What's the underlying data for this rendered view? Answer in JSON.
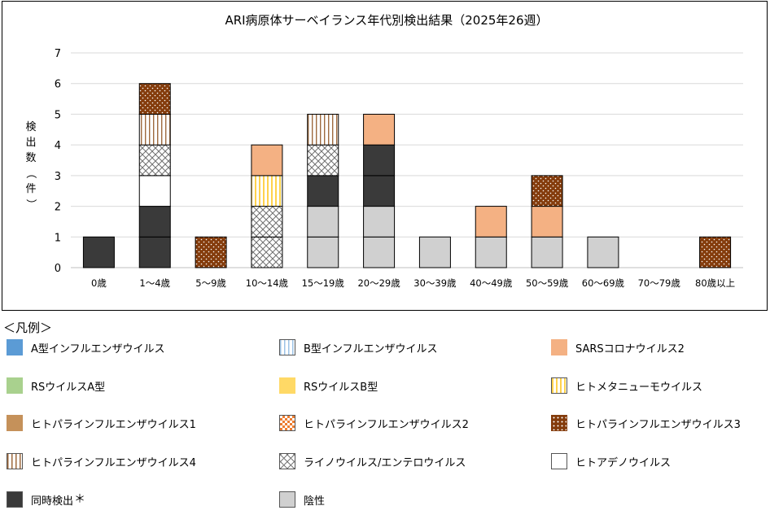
{
  "chart_data": {
    "type": "bar",
    "stacked": true,
    "title": "ARI病原体サーベイランス年代別検出結果（2025年26週）",
    "ylabel": "検出数（件）",
    "xlabel": "",
    "ylim": [
      0,
      7
    ],
    "yticks": [
      0,
      1,
      2,
      3,
      4,
      5,
      6,
      7
    ],
    "grid": true,
    "categories": [
      "0歳",
      "1～4歳",
      "5～9歳",
      "10～14歳",
      "15～19歳",
      "20～29歳",
      "30～39歳",
      "40～49歳",
      "50～59歳",
      "60～69歳",
      "70～79歳",
      "80歳以上"
    ],
    "series": [
      {
        "name": "陰性",
        "key": "negative",
        "values": [
          0,
          0,
          0,
          0,
          2,
          2,
          1,
          1,
          1,
          1,
          0,
          0
        ]
      },
      {
        "name": "同時検出",
        "key": "coinfection",
        "values": [
          1,
          2,
          0,
          0,
          1,
          2,
          0,
          0,
          0,
          0,
          0,
          0
        ]
      },
      {
        "name": "ヒトアデノウイルス",
        "key": "adeno",
        "values": [
          0,
          1,
          0,
          0,
          0,
          0,
          0,
          0,
          0,
          0,
          0,
          0
        ]
      },
      {
        "name": "ライノウイルス/エンテロウイルス",
        "key": "rhino",
        "values": [
          0,
          1,
          0,
          2,
          1,
          0,
          0,
          0,
          0,
          0,
          0,
          0
        ]
      },
      {
        "name": "ヒトメタニューモウイルス",
        "key": "hmpv",
        "values": [
          0,
          0,
          0,
          1,
          0,
          0,
          0,
          0,
          0,
          0,
          0,
          0
        ]
      },
      {
        "name": "ヒトパラインフルエンザウイルス4",
        "key": "hpiv4",
        "values": [
          0,
          1,
          0,
          0,
          1,
          0,
          0,
          0,
          0,
          0,
          0,
          0
        ]
      },
      {
        "name": "SARSコロナウイルス2",
        "key": "sars",
        "values": [
          0,
          0,
          0,
          1,
          0,
          1,
          0,
          1,
          1,
          0,
          0,
          0
        ]
      },
      {
        "name": "ヒトパラインフルエンザウイルス3",
        "key": "hpiv3",
        "values": [
          0,
          1,
          1,
          0,
          0,
          0,
          0,
          0,
          1,
          0,
          0,
          1
        ]
      }
    ]
  },
  "legend": {
    "heading": "＜凡例＞",
    "items": [
      {
        "label": "A型インフルエンザウイルス",
        "swatch": "solid",
        "color": "#5b9bd5"
      },
      {
        "label": "B型インフルエンザウイルス",
        "swatch": "vstripe-light",
        "color": "#9dc3e6"
      },
      {
        "label": "SARSコロナウイルス2",
        "swatch": "solid",
        "color": "#f4b183"
      },
      {
        "label": "RSウイルスA型",
        "swatch": "solid",
        "color": "#a9d18e"
      },
      {
        "label": "RSウイルスB型",
        "swatch": "solid",
        "color": "#ffd966"
      },
      {
        "label": "ヒトメタニューモウイルス",
        "swatch": "vstripe-yellow",
        "color": "#ffd966"
      },
      {
        "label": "ヒトパラインフルエンザウイルス1",
        "swatch": "solid",
        "color": "#c5915a"
      },
      {
        "label": "ヒトパラインフルエンザウイルス2",
        "swatch": "check-orange",
        "color": "#ed7d31"
      },
      {
        "label": "ヒトパラインフルエンザウイルス3",
        "swatch": "dots-brown",
        "color": "#843c0c"
      },
      {
        "label": "ヒトパラインフルエンザウイルス4",
        "swatch": "vstripe-brown",
        "color": "#a0734a"
      },
      {
        "label": "ライノウイルス/エンテロウイルス",
        "swatch": "crosshatch",
        "color": "#808080"
      },
      {
        "label": "ヒトアデノウイルス",
        "swatch": "solid",
        "color": "#ffffff"
      },
      {
        "label": "同時検出",
        "swatch": "solid",
        "color": "#3a3a3a",
        "mark": "＊"
      },
      {
        "label": "陰性",
        "swatch": "solid",
        "color": "#d0d0d0"
      }
    ]
  },
  "series_fills": {
    "negative": "#d0d0d0",
    "coinfection": "#3a3a3a",
    "adeno": "#ffffff",
    "rhino": "url(#pat-crosshatch)",
    "hmpv": "url(#pat-vstripe-yellow)",
    "hpiv4": "url(#pat-vstripe-brown)",
    "sars": "#f4b183",
    "hpiv3": "url(#pat-dots-brown)"
  }
}
